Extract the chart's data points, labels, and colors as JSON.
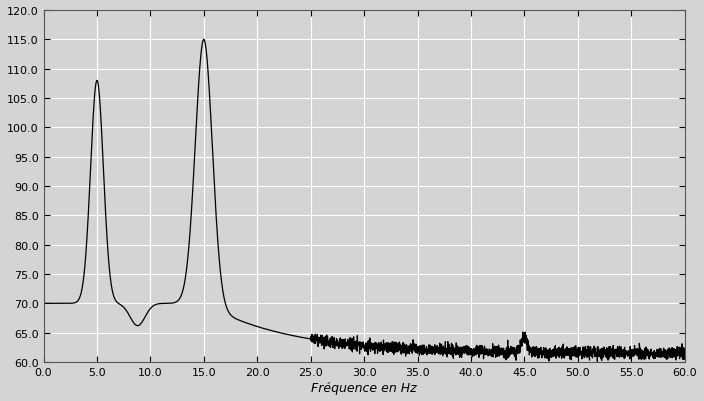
{
  "title": "",
  "xlabel": "Fréquence en Hz",
  "ylabel": "",
  "xlim": [
    0.0,
    60.0
  ],
  "ylim": [
    60.0,
    120.0
  ],
  "xticks": [
    0.0,
    5.0,
    10.0,
    15.0,
    20.0,
    25.0,
    30.0,
    35.0,
    40.0,
    45.0,
    50.0,
    55.0,
    60.0
  ],
  "yticks": [
    60.0,
    65.0,
    70.0,
    75.0,
    80.0,
    85.0,
    90.0,
    95.0,
    100.0,
    105.0,
    110.0,
    115.0,
    120.0
  ],
  "line_color": "#000000",
  "background_color": "#e8e8e8",
  "plot_bg_color": "#e0e0e0",
  "peak1_freq": 5.0,
  "peak1_val": 108.0,
  "peak2_freq": 15.0,
  "peak2_val": 115.0,
  "base_level": 70.0,
  "noise_floor": 61.5
}
